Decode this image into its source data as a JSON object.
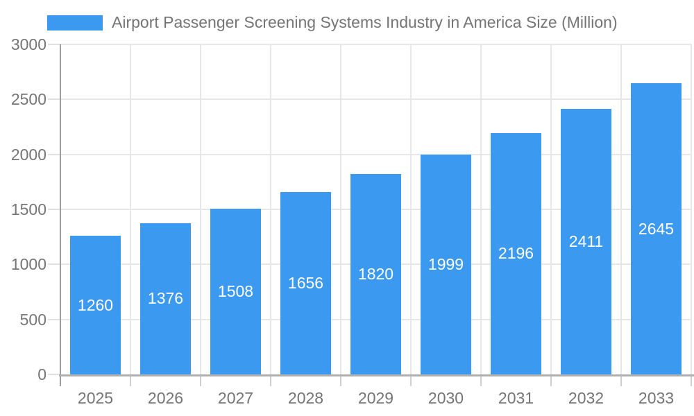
{
  "legend": {
    "label": "Airport Passenger Screening Systems Industry in America Size (Million)"
  },
  "chart_data": {
    "type": "bar",
    "title": "Airport Passenger Screening Systems Industry in America Size (Million)",
    "categories": [
      "2025",
      "2026",
      "2027",
      "2028",
      "2029",
      "2030",
      "2031",
      "2032",
      "2033"
    ],
    "values": [
      1260,
      1376,
      1508,
      1656,
      1820,
      1999,
      2196,
      2411,
      2645
    ],
    "value_labels": [
      "1260",
      "1376",
      "1508",
      "1656",
      "1820",
      "1999",
      "2196",
      "2411",
      "2645"
    ],
    "xlabel": "",
    "ylabel": "",
    "ylim": [
      0,
      3000
    ],
    "yticks": [
      0,
      500,
      1000,
      1500,
      2000,
      2500,
      3000
    ],
    "ytick_labels": [
      "0",
      "500",
      "1000",
      "1500",
      "2000",
      "2500",
      "3000"
    ],
    "grid": true,
    "legend_position": "top-left"
  },
  "colors": {
    "bar": "#3b99f0",
    "bar_value_text": "#ffffff",
    "axis_text": "#757575",
    "grid_line": "#e7e7e7",
    "y_axis_line": "#9e9e9e",
    "baseline": "#b0b0b0",
    "y_tick": "#e0e0e0",
    "x_tick": "#cfcfcf",
    "background": "#ffffff"
  }
}
